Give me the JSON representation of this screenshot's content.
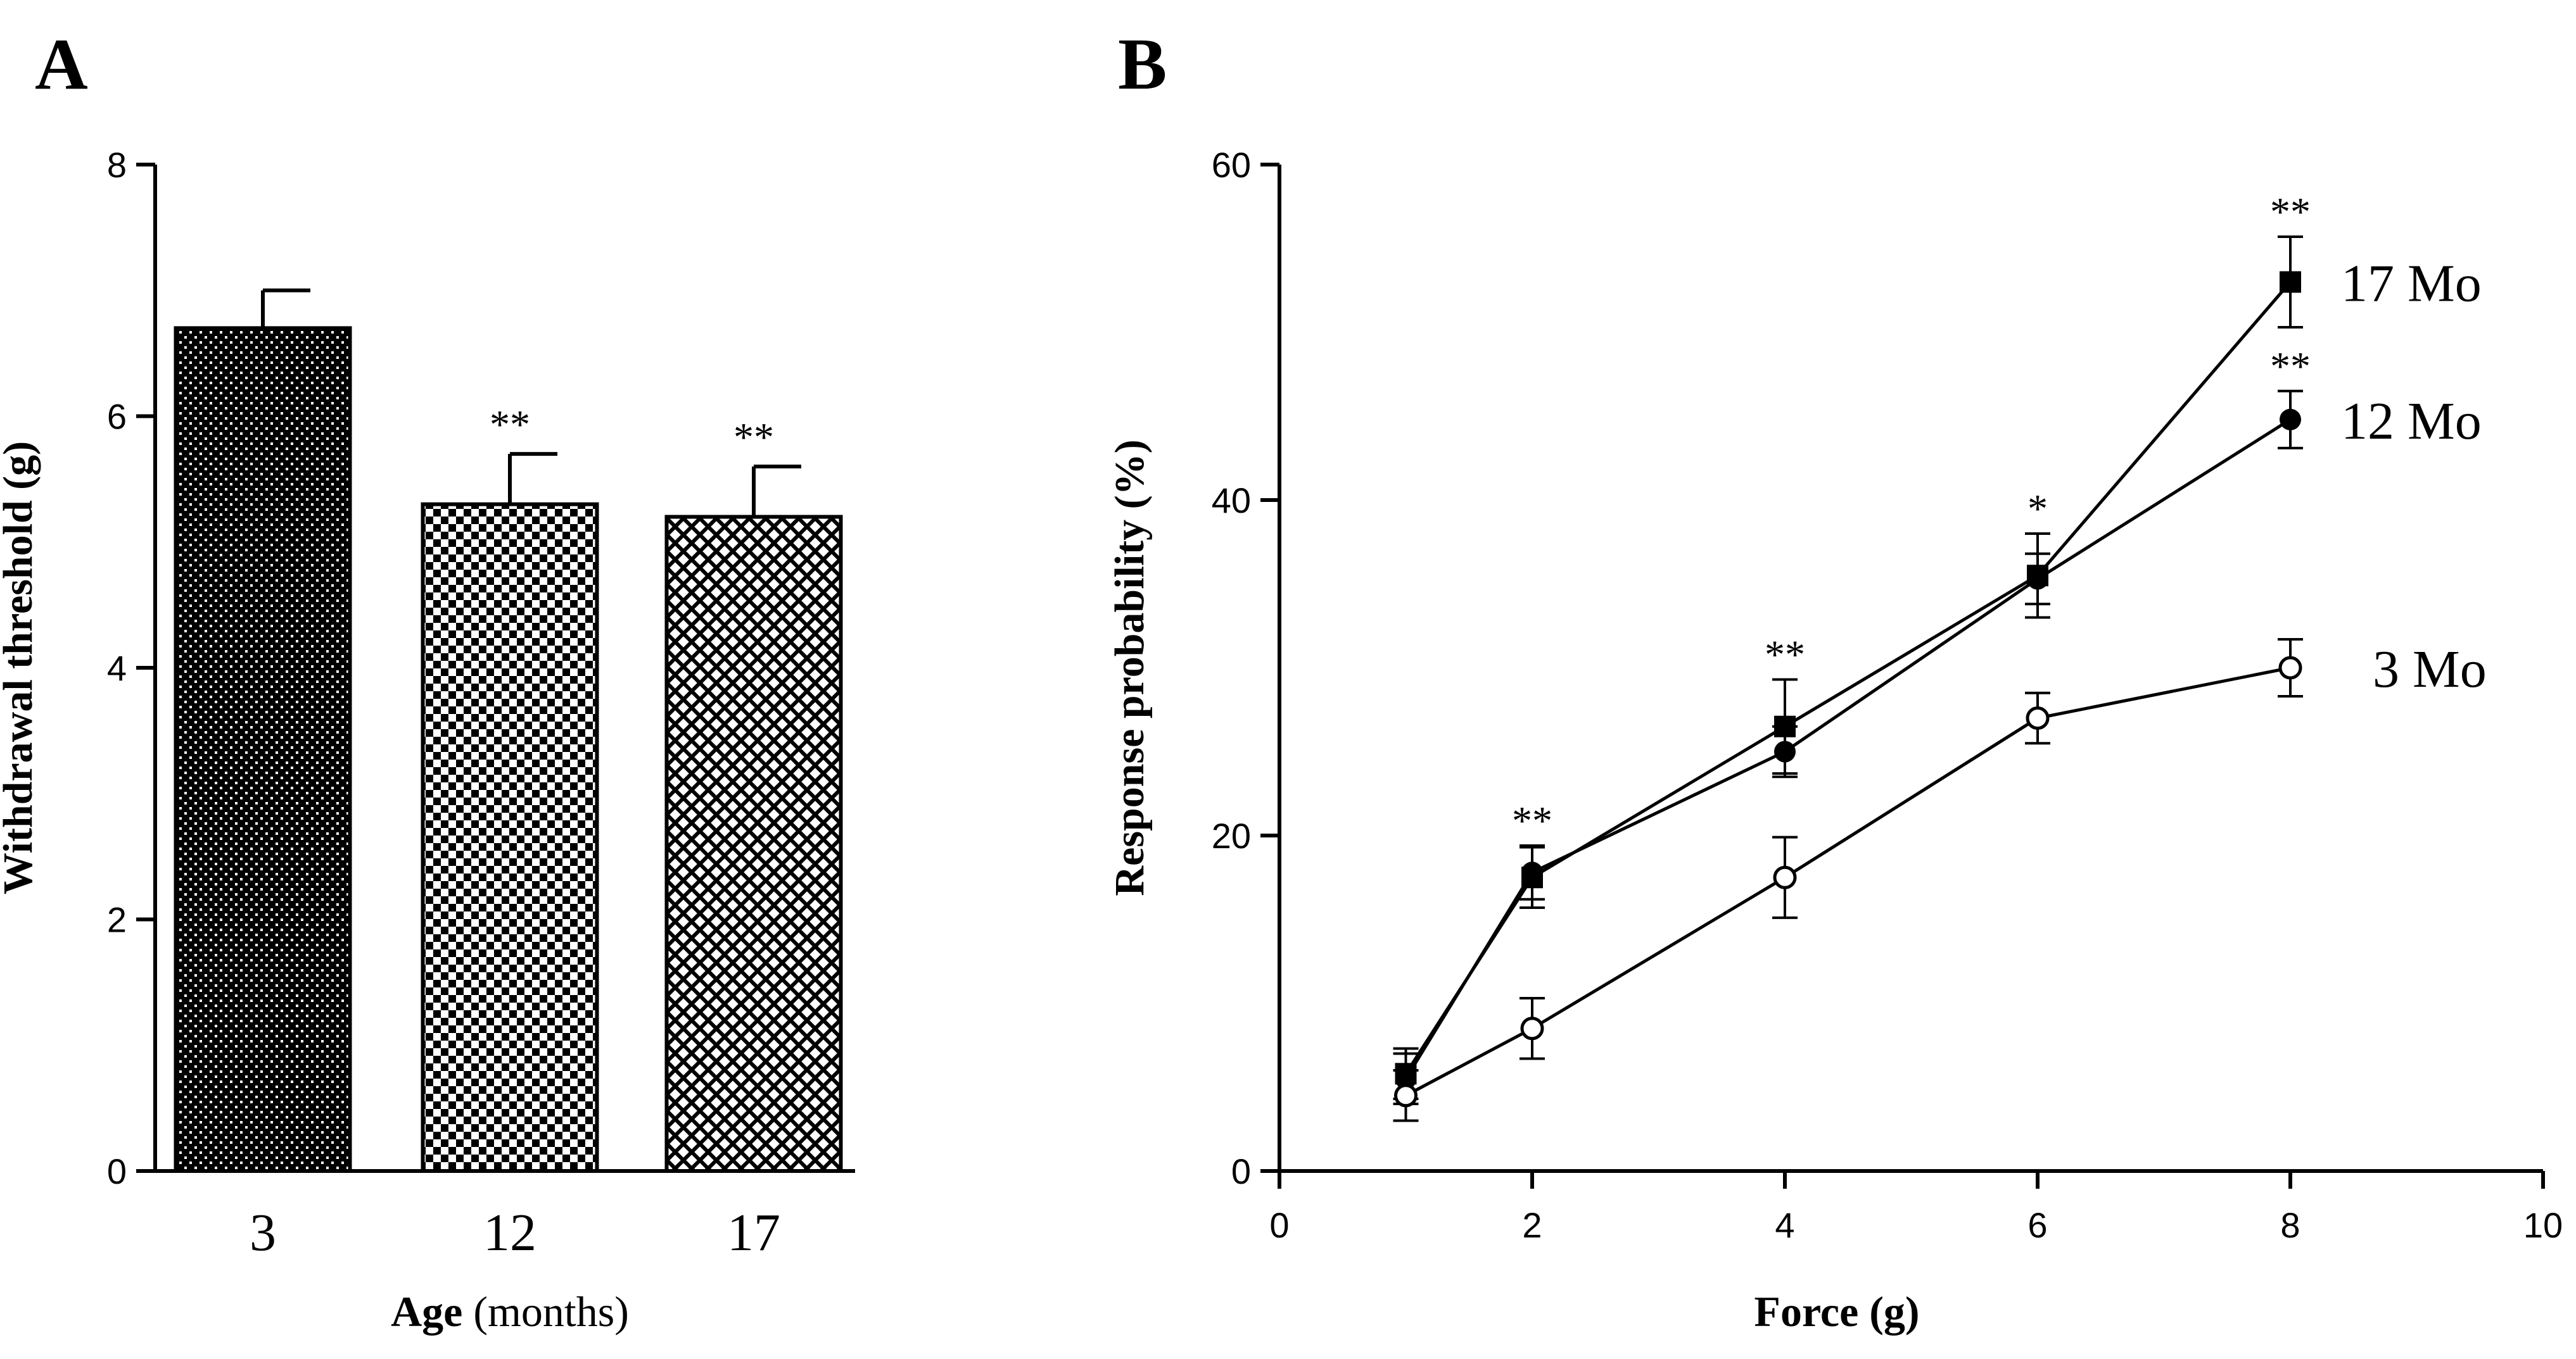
{
  "colors": {
    "ink": "#000000",
    "background": "#ffffff"
  },
  "chart_data": [
    {
      "panel": "A",
      "type": "bar",
      "xlabel_bold": "Age",
      "xlabel_rest": "(months)",
      "ylabel": "Withdrawal threshold (g)",
      "ylim": [
        0,
        8
      ],
      "yticks": [
        "0",
        "2",
        "4",
        "6",
        "8"
      ],
      "categories": [
        "3",
        "12",
        "17"
      ],
      "values": [
        6.7,
        5.3,
        5.2
      ],
      "errors": [
        0.3,
        0.4,
        0.4
      ],
      "significance": [
        "",
        "**",
        "**"
      ],
      "patterns": [
        "dense-dots",
        "checkerboard",
        "crosshatch"
      ]
    },
    {
      "panel": "B",
      "type": "line",
      "xlabel": "Force (g)",
      "ylabel": "Response probability (%)",
      "xlim": [
        0,
        10
      ],
      "ylim": [
        0,
        60
      ],
      "xticks": [
        "0",
        "2",
        "4",
        "6",
        "8",
        "10"
      ],
      "yticks": [
        "0",
        "20",
        "40",
        "60"
      ],
      "x": [
        1,
        2,
        4,
        6,
        8
      ],
      "series": [
        {
          "name": "17 Mo",
          "marker": "filled-square",
          "values": [
            5.8,
            17.5,
            26.5,
            35.5,
            53.0
          ],
          "errors": [
            1.5,
            1.8,
            2.8,
            2.5,
            2.7
          ]
        },
        {
          "name": "12 Mo",
          "marker": "filled-circle",
          "values": [
            5.5,
            17.8,
            25.0,
            35.3,
            44.8
          ],
          "errors": [
            1.5,
            1.6,
            1.5,
            1.5,
            1.7
          ]
        },
        {
          "name": "3 Mo",
          "marker": "open-circle",
          "values": [
            4.5,
            8.5,
            17.5,
            27.0,
            30.0
          ],
          "errors": [
            1.5,
            1.8,
            2.4,
            1.5,
            1.7
          ]
        }
      ],
      "significance": [
        {
          "x": 2,
          "label": "**"
        },
        {
          "x": 4,
          "label": "**"
        },
        {
          "x": 6,
          "label": "*"
        },
        {
          "x": 8,
          "label": "**",
          "series": "17 Mo"
        },
        {
          "x": 8,
          "label": "**",
          "series": "12 Mo"
        }
      ]
    }
  ]
}
